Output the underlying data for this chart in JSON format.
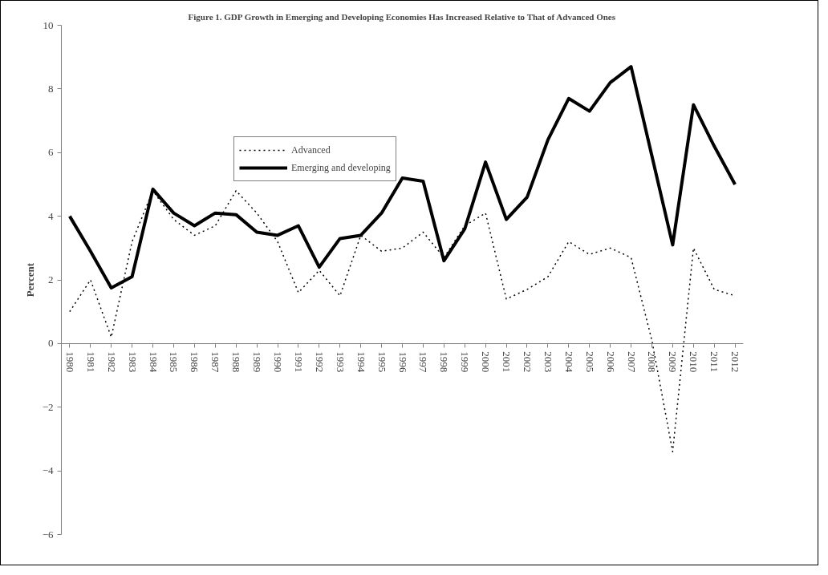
{
  "chart_data": {
    "type": "line",
    "title": "Figure 1. GDP Growth in Emerging and Developing Economies Has Increased Relative to That of Advanced Ones",
    "ylabel": "Percent",
    "categories": [
      "1980",
      "1981",
      "1982",
      "1983",
      "1984",
      "1985",
      "1986",
      "1987",
      "1988",
      "1989",
      "1990",
      "1991",
      "1992",
      "1993",
      "1994",
      "1995",
      "1996",
      "1997",
      "1998",
      "1999",
      "2000",
      "2001",
      "2002",
      "2003",
      "2004",
      "2005",
      "2006",
      "2007",
      "2008",
      "2009",
      "2010",
      "2011",
      "2012"
    ],
    "series": [
      {
        "name": "Advanced",
        "color": "#000000",
        "line_style": "dotted",
        "values": [
          1.0,
          2.0,
          0.2,
          3.2,
          4.8,
          3.9,
          3.4,
          3.7,
          4.8,
          4.1,
          3.2,
          1.6,
          2.3,
          1.5,
          3.4,
          2.9,
          3.0,
          3.5,
          2.7,
          3.7,
          4.1,
          1.4,
          1.7,
          2.1,
          3.2,
          2.8,
          3.0,
          2.7,
          0.1,
          -3.4,
          3.0,
          1.7,
          1.5
        ]
      },
      {
        "name": "Emerging and developing",
        "color": "#000000",
        "line_style": "solid",
        "values": [
          4.0,
          2.9,
          1.75,
          2.1,
          4.85,
          4.1,
          3.7,
          4.1,
          4.05,
          3.5,
          3.4,
          3.7,
          2.4,
          3.3,
          3.4,
          4.1,
          5.2,
          5.1,
          2.6,
          3.6,
          5.7,
          3.9,
          4.6,
          6.4,
          7.7,
          7.3,
          8.2,
          8.7,
          5.9,
          3.1,
          7.5,
          6.2,
          5.0
        ]
      }
    ],
    "ylim": [
      -6,
      10
    ],
    "yticks": [
      -6,
      -4,
      -2,
      0,
      2,
      4,
      6,
      8,
      10
    ],
    "grid": false,
    "legend": "top left",
    "marker": "none"
  }
}
